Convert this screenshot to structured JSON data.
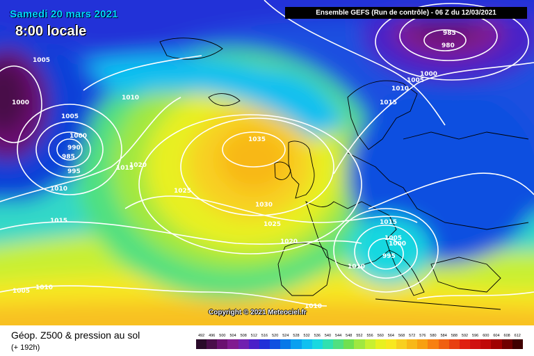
{
  "header": {
    "date": "Samedi 20 mars 2021",
    "local_time": "8:00 locale",
    "run": "Ensemble GEFS  (Run de contrôle)  -  06 Z du 12/03/2021"
  },
  "copyright": "Copyright © 2021 Meteociel.fr",
  "footer": {
    "title": "Géop. Z500 & pression au sol",
    "hour": "(+ 192h)"
  },
  "scale": {
    "values": [
      "492",
      "496",
      "500",
      "504",
      "508",
      "512",
      "516",
      "520",
      "524",
      "528",
      "532",
      "536",
      "540",
      "544",
      "548",
      "552",
      "556",
      "560",
      "564",
      "568",
      "572",
      "576",
      "580",
      "584",
      "588",
      "592",
      "596",
      "600",
      "604",
      "608",
      "612"
    ],
    "colors": [
      "#2a0a2a",
      "#4a0d4a",
      "#6a1070",
      "#801a90",
      "#7020b0",
      "#4a20c8",
      "#2030d8",
      "#1050e0",
      "#0878e8",
      "#0aa0f0",
      "#10c0f0",
      "#18d8e0",
      "#30e0b0",
      "#50e080",
      "#70e050",
      "#a0e840",
      "#c8f030",
      "#e8f020",
      "#f8e820",
      "#f8d020",
      "#f8b818",
      "#f8a010",
      "#f88010",
      "#f06010",
      "#e84010",
      "#e02010",
      "#d01010",
      "#c00808",
      "#a00000",
      "#700000",
      "#400000"
    ],
    "colors_note": "accent palette for Z500 shading"
  },
  "pressure_labels": [
    "1035",
    "1030",
    "1025",
    "1025",
    "1020",
    "1020",
    "1015",
    "1015",
    "1015",
    "1015",
    "1010",
    "1010",
    "1010",
    "1010",
    "1010",
    "1010",
    "1005",
    "1005",
    "1005",
    "1005",
    "1005",
    "1000",
    "1000",
    "1000",
    "1000",
    "995",
    "995",
    "990",
    "985",
    "985",
    "980"
  ],
  "colors": {
    "high_center": "#f8c020",
    "low_center_atlantic": "#800080",
    "low_center_ne": "#700070",
    "isobar": "#ffffff",
    "coast": "#000000"
  }
}
